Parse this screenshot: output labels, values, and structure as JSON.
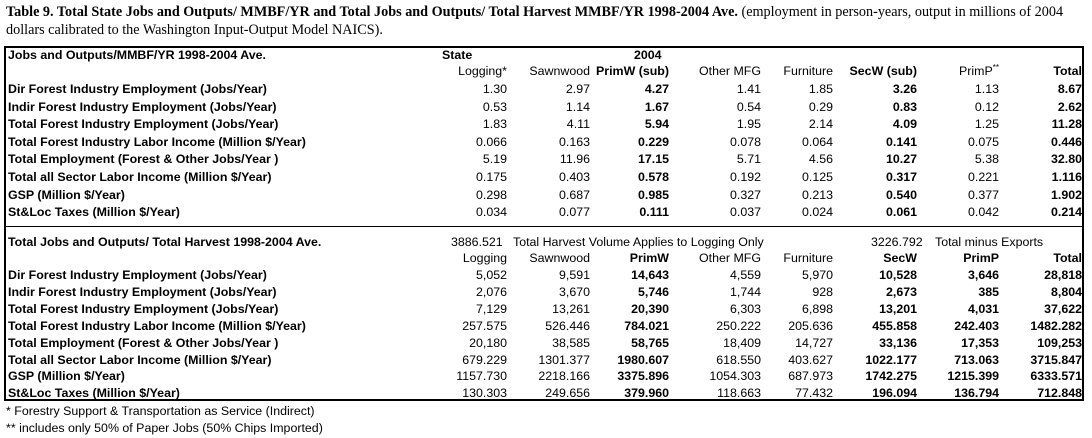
{
  "caption": {
    "bold": "Table 9.  Total State Jobs and Outputs/ MMBF/YR and Total Jobs and Outputs/ Total Harvest MMBF/YR 1998-2004 Ave.",
    "normal": " (employment in person-years, output in millions of 2004 dollars calibrated to the Washington Input-Output Model NAICS)."
  },
  "section1": {
    "title": "Jobs and Outputs/MMBF/YR 1998-2004 Ave.",
    "pre_header": {
      "state": "State",
      "year": "2004"
    },
    "headers": [
      "Logging*",
      "Sawnwood",
      "PrimW (sub)",
      "Other MFG",
      "Furniture",
      "SecW (sub)",
      "PrimP**",
      "Total"
    ],
    "rows": [
      {
        "label": "Dir Forest Industry Employment (Jobs/Year)",
        "values": [
          "1.30",
          "2.97",
          "4.27",
          "1.41",
          "1.85",
          "3.26",
          "1.13",
          "8.67"
        ]
      },
      {
        "label": "Indir Forest Industry Employment (Jobs/Year)",
        "values": [
          "0.53",
          "1.14",
          "1.67",
          "0.54",
          "0.29",
          "0.83",
          "0.12",
          "2.62"
        ]
      },
      {
        "label": "Total Forest Industry Employment (Jobs/Year)",
        "values": [
          "1.83",
          "4.11",
          "5.94",
          "1.95",
          "2.14",
          "4.09",
          "1.25",
          "11.28"
        ]
      },
      {
        "label": "Total Forest Industry Labor Income (Million $/Year)",
        "values": [
          "0.066",
          "0.163",
          "0.229",
          "0.078",
          "0.064",
          "0.141",
          "0.075",
          "0.446"
        ]
      },
      {
        "label": "Total Employment (Forest & Other Jobs/Year )",
        "values": [
          "5.19",
          "11.96",
          "17.15",
          "5.71",
          "4.56",
          "10.27",
          "5.38",
          "32.80"
        ]
      },
      {
        "label": "Total all Sector Labor Income (Million $/Year)",
        "values": [
          "0.175",
          "0.403",
          "0.578",
          "0.192",
          "0.125",
          "0.317",
          "0.221",
          "1.116"
        ]
      },
      {
        "label": "GSP (Million $/Year)",
        "values": [
          "0.298",
          "0.687",
          "0.985",
          "0.327",
          "0.213",
          "0.540",
          "0.377",
          "1.902"
        ]
      },
      {
        "label": "St&Loc Taxes (Million $/Year)",
        "values": [
          "0.034",
          "0.077",
          "0.111",
          "0.037",
          "0.024",
          "0.061",
          "0.042",
          "0.214"
        ]
      }
    ]
  },
  "section2": {
    "title": "Total Jobs and Outputs/ Total Harvest 1998-2004 Ave.",
    "harvest_value": "3886.521",
    "harvest_note": "Total Harvest Volume Applies to Logging Only",
    "exports_value": "3226.792",
    "exports_note": "Total minus Exports",
    "headers": [
      "Logging",
      "Sawnwood",
      "PrimW",
      "Other MFG",
      "Furniture",
      "SecW",
      "PrimP",
      "Total"
    ],
    "rows": [
      {
        "label": "Dir Forest Industry Employment (Jobs/Year)",
        "values": [
          "5,052",
          "9,591",
          "14,643",
          "4,559",
          "5,970",
          "10,528",
          "3,646",
          "28,818"
        ]
      },
      {
        "label": "Indir Forest Industry Employment (Jobs/Year)",
        "values": [
          "2,076",
          "3,670",
          "5,746",
          "1,744",
          "928",
          "2,673",
          "385",
          "8,804"
        ]
      },
      {
        "label": "Total Forest Industry Employment (Jobs/Year)",
        "values": [
          "7,129",
          "13,261",
          "20,390",
          "6,303",
          "6,898",
          "13,201",
          "4,031",
          "37,622"
        ]
      },
      {
        "label": "Total Forest Industry Labor Income (Million $/Year)",
        "values": [
          "257.575",
          "526.446",
          "784.021",
          "250.222",
          "205.636",
          "455.858",
          "242.403",
          "1482.282"
        ]
      },
      {
        "label": "Total Employment (Forest & Other Jobs/Year )",
        "values": [
          "20,180",
          "38,585",
          "58,765",
          "18,409",
          "14,727",
          "33,136",
          "17,353",
          "109,253"
        ]
      },
      {
        "label": "Total all Sector Labor Income (Million $/Year)",
        "values": [
          "679.229",
          "1301.377",
          "1980.607",
          "618.550",
          "403.627",
          "1022.177",
          "713.063",
          "3715.847"
        ]
      },
      {
        "label": "GSP (Million $/Year)",
        "values": [
          "1157.730",
          "2218.166",
          "3375.896",
          "1054.303",
          "687.973",
          "1742.275",
          "1215.399",
          "6333.571"
        ]
      },
      {
        "label": "St&Loc Taxes (Million $/Year)",
        "values": [
          "130.303",
          "249.656",
          "379.960",
          "118.663",
          "77.432",
          "196.094",
          "136.794",
          "712.848"
        ]
      }
    ]
  },
  "footnotes": [
    "* Forestry Support & Transportation as Service (Indirect)",
    "** includes only 50% of Paper Jobs (50% Chips Imported)"
  ]
}
